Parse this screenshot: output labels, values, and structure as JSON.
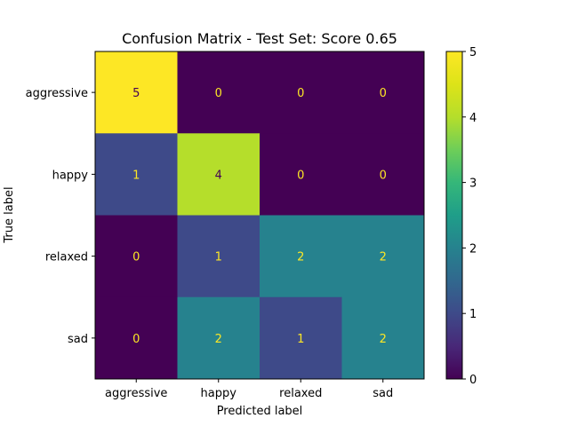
{
  "chart_data": {
    "type": "heatmap",
    "title": "Confusion Matrix - Test Set: Score 0.65",
    "xlabel": "Predicted label",
    "ylabel": "True label",
    "x_categories": [
      "aggressive",
      "happy",
      "relaxed",
      "sad"
    ],
    "y_categories": [
      "aggressive",
      "happy",
      "relaxed",
      "sad"
    ],
    "values": [
      [
        5,
        0,
        0,
        0
      ],
      [
        1,
        4,
        0,
        0
      ],
      [
        0,
        1,
        2,
        2
      ],
      [
        0,
        2,
        1,
        2
      ]
    ],
    "colormap": "viridis",
    "value_range": [
      0,
      5
    ],
    "colorbar_ticks": [
      0,
      1,
      2,
      3,
      4,
      5
    ],
    "grid": false,
    "annotation_colors": {
      "low": "#fde725",
      "high": "#440154"
    }
  }
}
